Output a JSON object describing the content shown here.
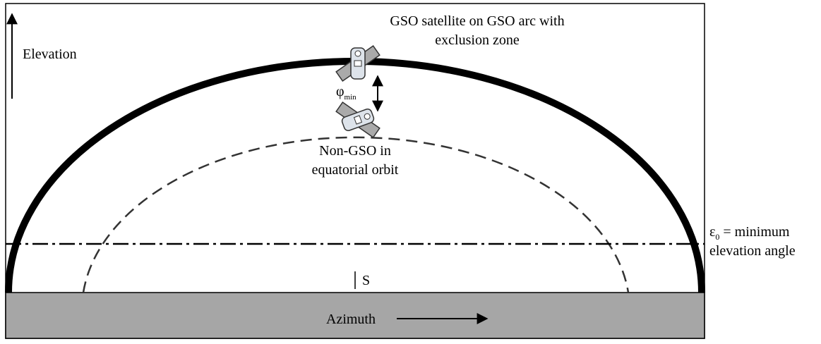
{
  "labels": {
    "gso_title": [
      "GSO satellite on GSO arc with",
      "exclusion zone"
    ],
    "elevation": "Elevation",
    "phi": {
      "symbol": "φ",
      "subscript": "min"
    },
    "non_gso": [
      "Non-GSO in",
      "equatorial orbit"
    ],
    "epsilon": {
      "symbol": "ε",
      "subscript": "0",
      "text": " = minimum",
      "line2": "elevation angle"
    },
    "south": "S",
    "azimuth": "Azimuth"
  }
}
